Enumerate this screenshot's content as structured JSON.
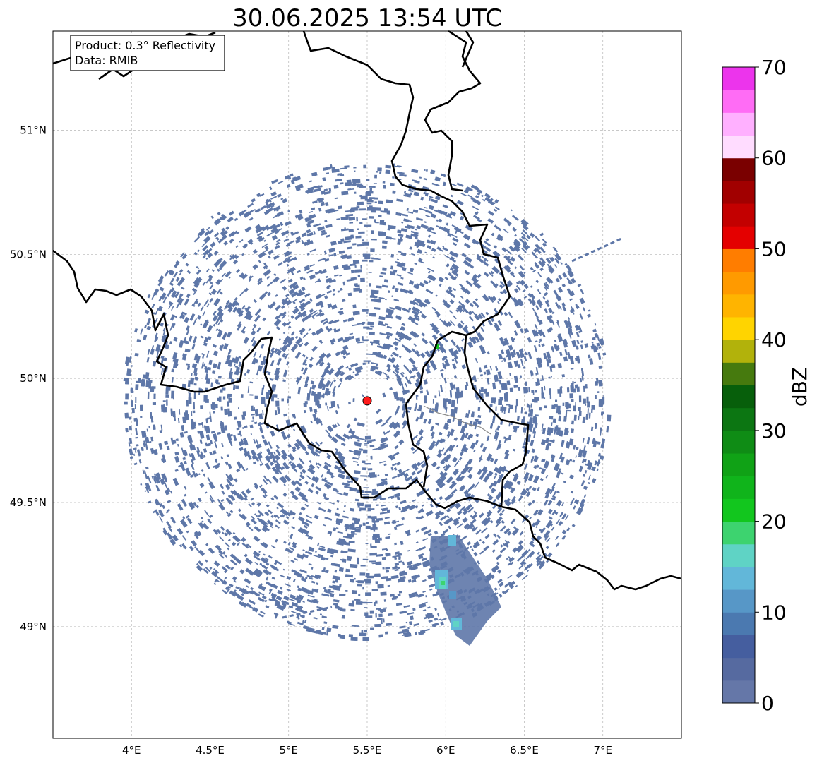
{
  "title": "30.06.2025 13:54 UTC",
  "info_box": {
    "line1": "Product: 0.3° Reflectivity",
    "line2": "Data: RMIB"
  },
  "map": {
    "lon_range": [
      3.5,
      7.5
    ],
    "lat_range": [
      48.55,
      51.4
    ],
    "lon_ticks": [
      {
        "value": 4.0,
        "label": "4°E"
      },
      {
        "value": 4.5,
        "label": "4.5°E"
      },
      {
        "value": 5.0,
        "label": "5°E"
      },
      {
        "value": 5.5,
        "label": "5.5°E"
      },
      {
        "value": 6.0,
        "label": "6°E"
      },
      {
        "value": 6.5,
        "label": "6.5°E"
      },
      {
        "value": 7.0,
        "label": "7°E"
      }
    ],
    "lat_ticks": [
      {
        "value": 49.0,
        "label": "49°N"
      },
      {
        "value": 49.5,
        "label": "49.5°N"
      },
      {
        "value": 50.0,
        "label": "50°N"
      },
      {
        "value": 50.5,
        "label": "50.5°N"
      },
      {
        "value": 51.0,
        "label": "51°N"
      }
    ],
    "gridlines": true,
    "radar_site": {
      "lon": 5.5,
      "lat": 49.91,
      "color": "#ff1a1a"
    },
    "clutter_color": "#5e77a8",
    "storm_cells": [
      {
        "lon": 6.05,
        "lat": 49.33,
        "dbz": 14
      },
      {
        "lon": 5.99,
        "lat": 49.17,
        "dbz": 16
      },
      {
        "lon": 6.0,
        "lat": 49.14,
        "dbz": 22
      },
      {
        "lon": 6.08,
        "lat": 48.98,
        "dbz": 18
      }
    ]
  },
  "colorbar": {
    "label": "dBZ",
    "min": 0,
    "max": 70,
    "tick_labels": [
      "0",
      "10",
      "20",
      "30",
      "40",
      "50",
      "60",
      "70"
    ],
    "colors": [
      "#6577a8",
      "#566aa0",
      "#455e9f",
      "#4b79b0",
      "#5797c7",
      "#62b7d9",
      "#5fd3c5",
      "#3dd36f",
      "#12c61e",
      "#10b41b",
      "#10a216",
      "#0f8c15",
      "#0c7612",
      "#075f0b",
      "#467a0e",
      "#b2b20b",
      "#ffd400",
      "#ffb400",
      "#ff9a00",
      "#ff7d00",
      "#e40000",
      "#c30000",
      "#a10000",
      "#7a0000",
      "#ffdcff",
      "#ffb0ff",
      "#ff6cf5",
      "#ec34ec"
    ]
  }
}
